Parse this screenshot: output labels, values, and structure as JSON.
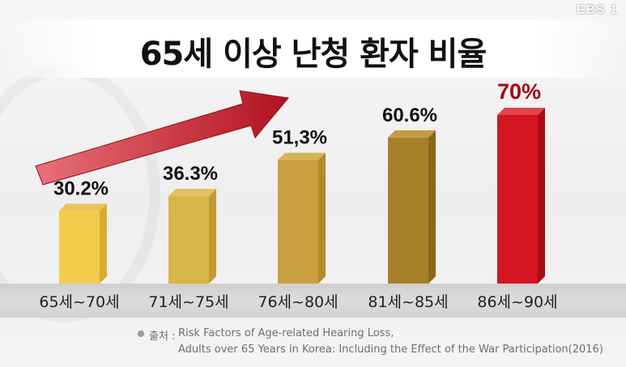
{
  "logo": "EBS 1",
  "source": {
    "label": "출처 :",
    "line1": "Risk Factors of Age-related Hearing Loss,",
    "line2": "Adults over 65 Years in Korea: Including the Effect of the War Participation(2016)"
  },
  "colors": {
    "bar_gold": "#c9a445",
    "bar_dark_gold": "#9a7424",
    "bar_red": "#c2121a",
    "arrow": "#c8202e",
    "highlight_label": "#a3080f"
  },
  "chart_data": {
    "type": "bar",
    "title": "65세 이상 난청 환자 비율",
    "categories": [
      "65세~70세",
      "71세~75세",
      "76세~80세",
      "81세~85세",
      "86세~90세"
    ],
    "values": [
      30.2,
      36.3,
      51.3,
      60.6,
      70
    ],
    "value_labels": [
      "30.2%",
      "36.3%",
      "51,3%",
      "60.6%",
      "70%"
    ],
    "unit": "%",
    "highlight_index": 4,
    "grid": false,
    "legend": "none",
    "trend_arrow": "increasing"
  }
}
